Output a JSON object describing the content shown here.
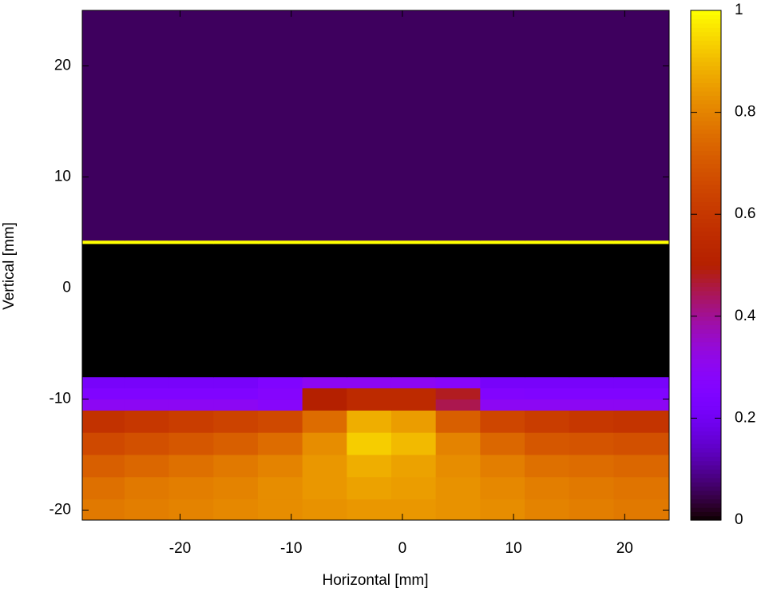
{
  "chart_data": {
    "type": "heatmap",
    "xlabel": "Horizontal [mm]",
    "ylabel": "Vertical [mm]",
    "xlim": [
      -28.8,
      24
    ],
    "ylim": [
      -20.9,
      25
    ],
    "xticks": [
      -20,
      -10,
      0,
      10,
      20
    ],
    "yticks": [
      -20,
      -10,
      0,
      10,
      20
    ],
    "xbins": [
      -28.8,
      -25,
      -21,
      -17,
      -13,
      -9,
      -5,
      -1,
      3,
      7,
      11,
      15,
      19,
      24
    ],
    "ybins": [
      -20.9,
      -19,
      -17,
      -15,
      -13,
      -11,
      -10,
      -9,
      -8,
      4,
      4.3,
      25
    ],
    "z": [
      [
        0.78,
        0.79,
        0.8,
        0.81,
        0.82,
        0.83,
        0.84,
        0.84,
        0.83,
        0.82,
        0.8,
        0.79,
        0.78
      ],
      [
        0.76,
        0.78,
        0.79,
        0.8,
        0.82,
        0.84,
        0.86,
        0.85,
        0.83,
        0.81,
        0.79,
        0.78,
        0.77
      ],
      [
        0.72,
        0.74,
        0.76,
        0.78,
        0.8,
        0.84,
        0.88,
        0.86,
        0.82,
        0.79,
        0.76,
        0.75,
        0.74
      ],
      [
        0.66,
        0.68,
        0.7,
        0.72,
        0.75,
        0.82,
        0.93,
        0.9,
        0.8,
        0.74,
        0.7,
        0.69,
        0.68
      ],
      [
        0.58,
        0.6,
        0.62,
        0.64,
        0.66,
        0.75,
        0.88,
        0.85,
        0.72,
        0.65,
        0.62,
        0.6,
        0.59
      ],
      [
        0.3,
        0.3,
        0.3,
        0.3,
        0.28,
        0.5,
        0.55,
        0.55,
        0.45,
        0.3,
        0.3,
        0.3,
        0.3
      ],
      [
        0.25,
        0.25,
        0.25,
        0.25,
        0.27,
        0.5,
        0.55,
        0.55,
        0.48,
        0.26,
        0.25,
        0.25,
        0.25
      ],
      [
        0.22,
        0.22,
        0.22,
        0.22,
        0.25,
        0.3,
        0.3,
        0.3,
        0.28,
        0.22,
        0.22,
        0.22,
        0.22
      ],
      [
        0,
        0,
        0,
        0,
        0,
        0,
        0,
        0,
        0,
        0,
        0,
        0,
        0
      ],
      [
        1,
        1,
        1,
        1,
        1,
        1,
        1,
        1,
        1,
        1,
        1,
        1,
        1
      ],
      [
        0.06,
        0.06,
        0.06,
        0.06,
        0.06,
        0.06,
        0.06,
        0.06,
        0.06,
        0.06,
        0.06,
        0.06,
        0.06
      ]
    ],
    "clim": [
      0,
      1
    ],
    "cticks": [
      0,
      0.2,
      0.4,
      0.6,
      0.8,
      1
    ],
    "palette": "gnuplot"
  }
}
